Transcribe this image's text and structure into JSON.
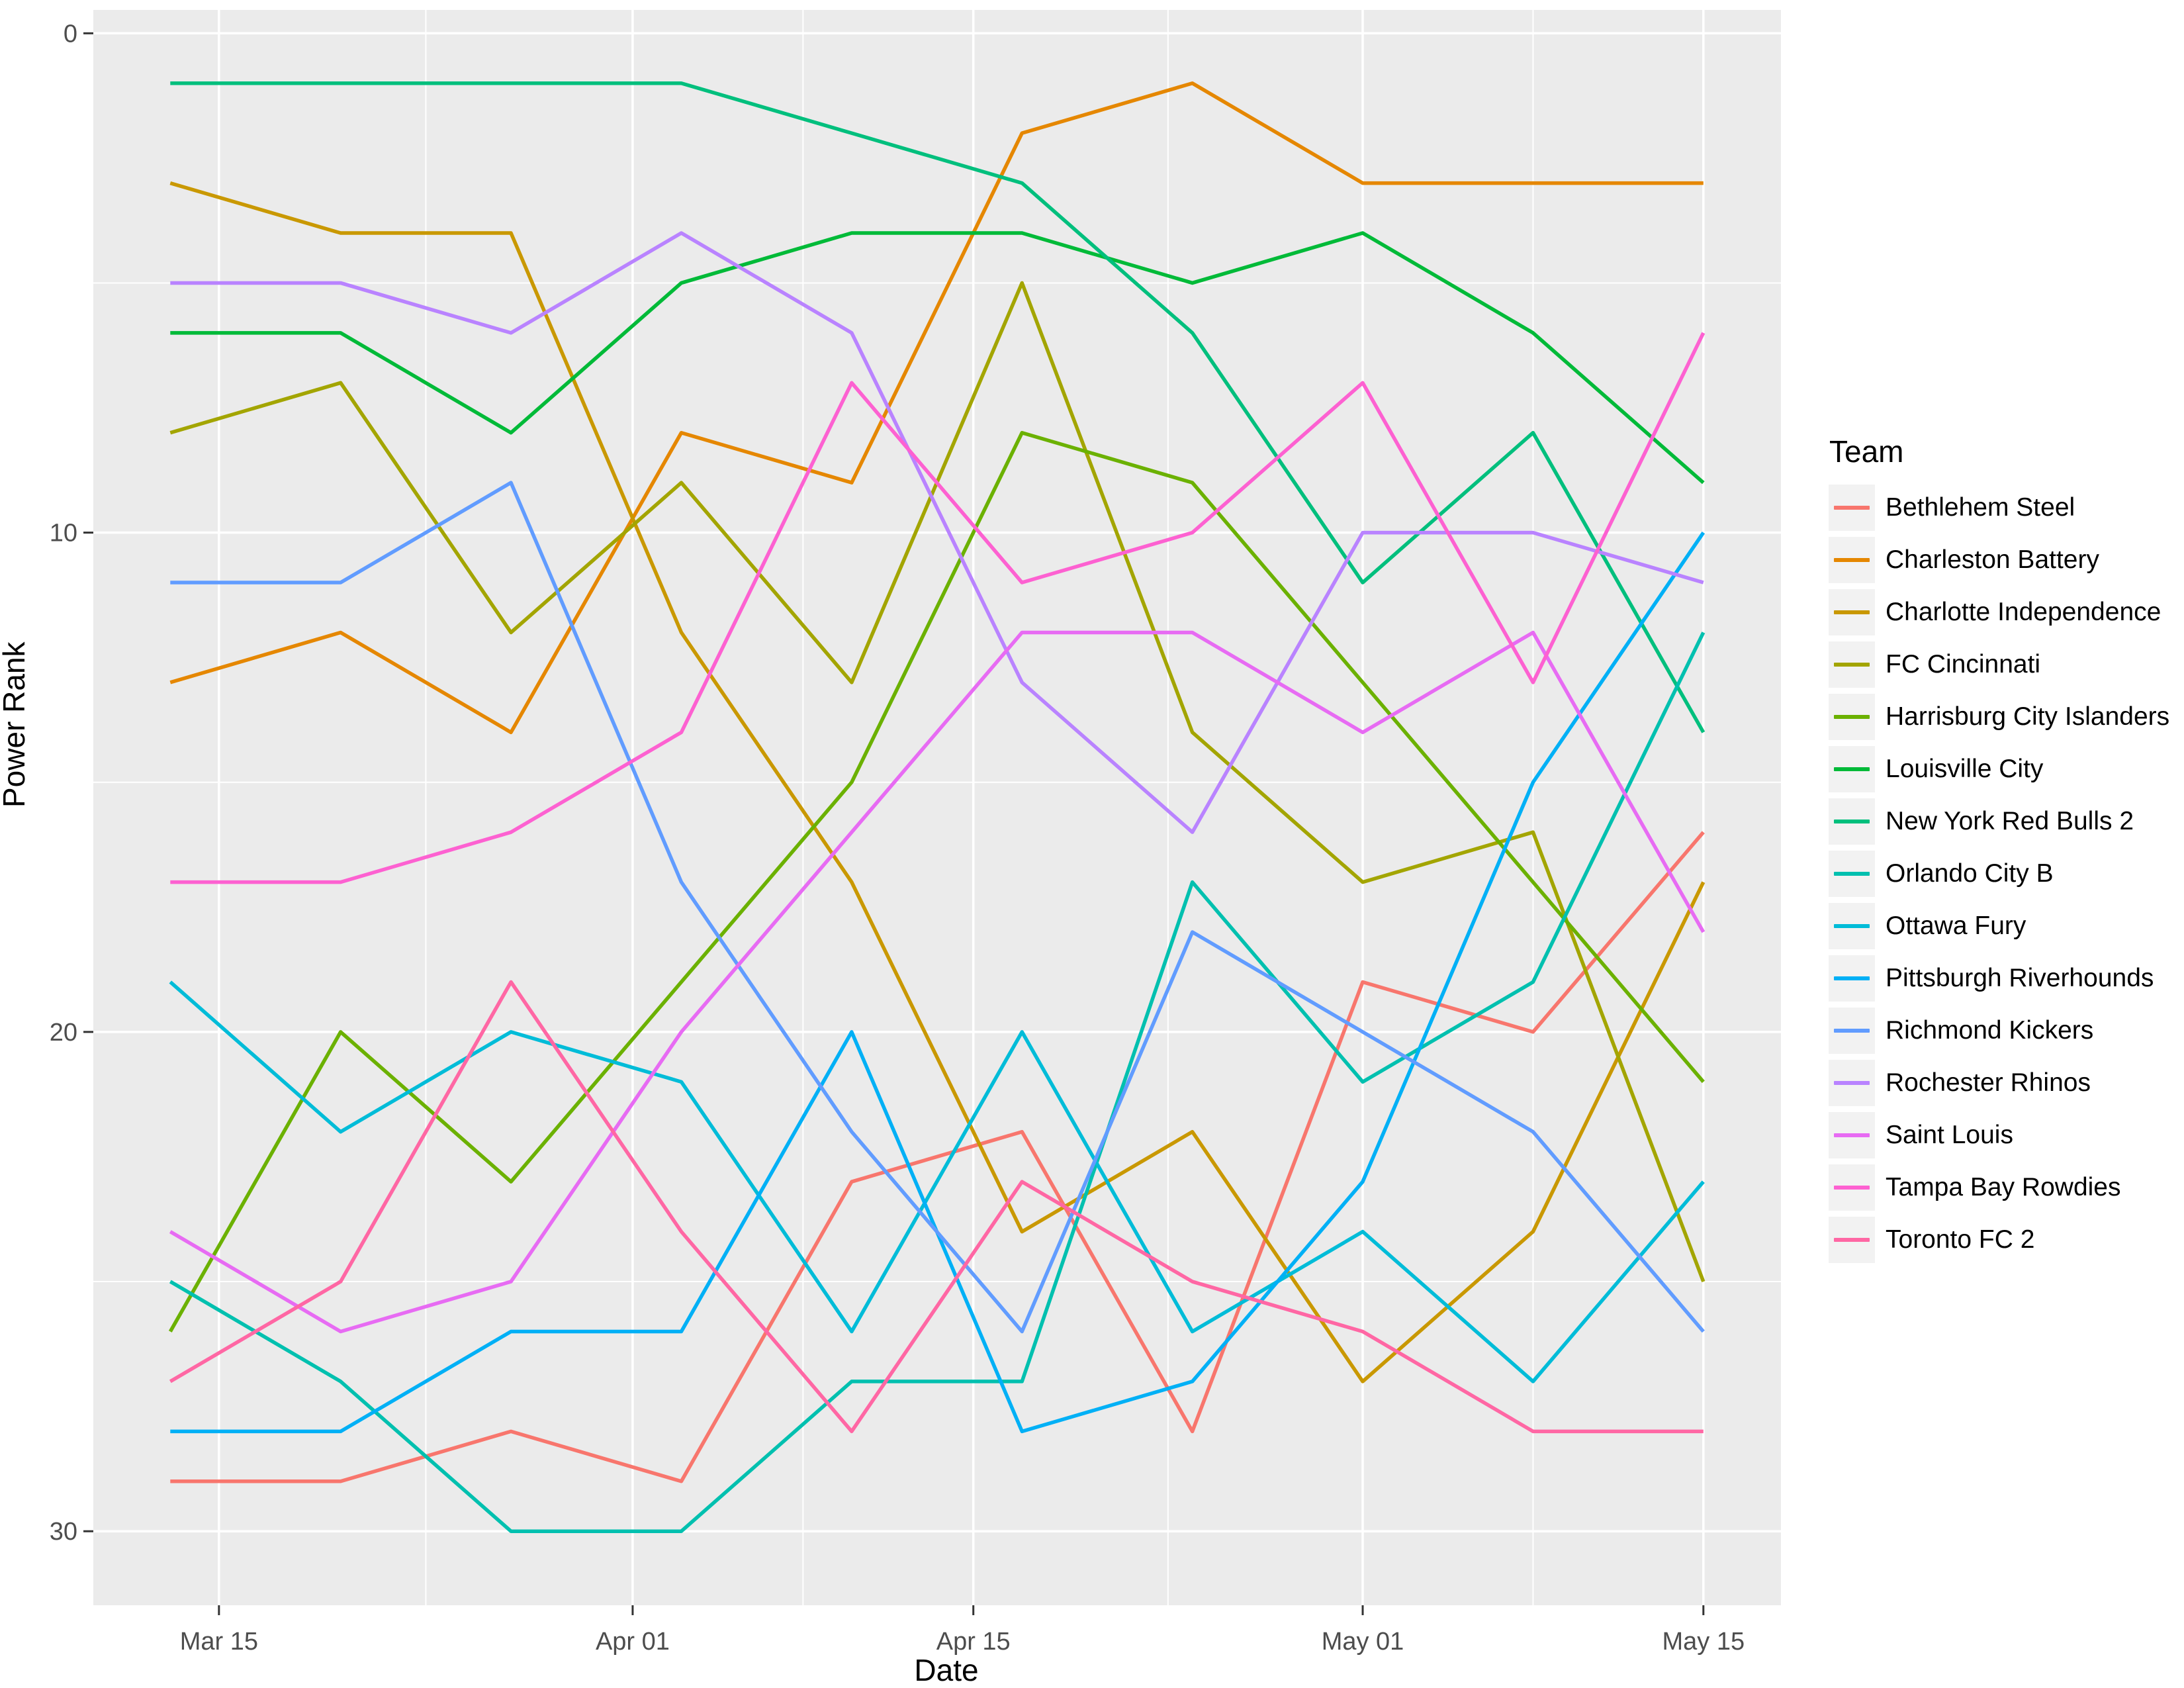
{
  "chart_data": {
    "type": "line",
    "xlabel": "Date",
    "ylabel": "Power Rank",
    "legend_title": "Team",
    "x": [
      "Mar 13",
      "Mar 20",
      "Mar 27",
      "Apr 03",
      "Apr 10",
      "Apr 17",
      "Apr 24",
      "May 01",
      "May 08",
      "May 15"
    ],
    "x_days": [
      0,
      7,
      14,
      21,
      28,
      35,
      42,
      49,
      56,
      63
    ],
    "x_major_ticks": [
      {
        "label": "Mar 15",
        "day": 2
      },
      {
        "label": "Apr 01",
        "day": 19
      },
      {
        "label": "Apr 15",
        "day": 33
      },
      {
        "label": "May 01",
        "day": 49
      },
      {
        "label": "May 15",
        "day": 63
      }
    ],
    "x_minor_days": [
      10.5,
      26,
      41,
      56
    ],
    "y_major_ticks": [
      {
        "label": "0",
        "value": 0
      },
      {
        "label": "10",
        "value": 10
      },
      {
        "label": "20",
        "value": 20
      },
      {
        "label": "30",
        "value": 30
      }
    ],
    "y_minor_values": [
      5,
      15,
      25
    ],
    "ylim": [
      0,
      30
    ],
    "y_reversed": true,
    "grid": true,
    "legend_position": "right",
    "colors": {
      "panel_bg": "#EBEBEB",
      "grid": "#FFFFFF",
      "axis_text": "#4D4D4D",
      "axis_tick": "#333333",
      "legend_key_bg": "#F2F2F2"
    },
    "series": [
      {
        "name": "Bethlehem Steel",
        "color": "#F8766D",
        "values": [
          29,
          29,
          28,
          29,
          23,
          22,
          28,
          19,
          20,
          16
        ]
      },
      {
        "name": "Charleston Battery",
        "color": "#E58700",
        "values": [
          13,
          12,
          14,
          8,
          9,
          2,
          1,
          3,
          3,
          3
        ]
      },
      {
        "name": "Charlotte Independence",
        "color": "#C99800",
        "values": [
          3,
          4,
          4,
          12,
          17,
          24,
          22,
          27,
          24,
          17
        ]
      },
      {
        "name": "FC Cincinnati",
        "color": "#A3A500",
        "values": [
          8,
          7,
          12,
          9,
          13,
          5,
          14,
          17,
          16,
          25
        ]
      },
      {
        "name": "Harrisburg City Islanders",
        "color": "#6BB100",
        "values": [
          26,
          20,
          23,
          19,
          15,
          8,
          9,
          13,
          17,
          21
        ]
      },
      {
        "name": "Louisville City",
        "color": "#00BA38",
        "values": [
          6,
          6,
          8,
          5,
          4,
          4,
          5,
          4,
          6,
          9
        ]
      },
      {
        "name": "New York Red Bulls 2",
        "color": "#00BF7D",
        "values": [
          1,
          1,
          1,
          1,
          2,
          3,
          6,
          11,
          8,
          14
        ]
      },
      {
        "name": "Orlando City B",
        "color": "#00C0AF",
        "values": [
          25,
          27,
          30,
          30,
          27,
          27,
          17,
          21,
          19,
          12
        ]
      },
      {
        "name": "Ottawa Fury",
        "color": "#00BCD8",
        "values": [
          19,
          22,
          20,
          21,
          26,
          20,
          26,
          24,
          27,
          23
        ]
      },
      {
        "name": "Pittsburgh Riverhounds",
        "color": "#00B0F6",
        "values": [
          28,
          28,
          26,
          26,
          20,
          28,
          27,
          23,
          15,
          10
        ]
      },
      {
        "name": "Richmond Kickers",
        "color": "#619CFF",
        "values": [
          11,
          11,
          9,
          17,
          22,
          26,
          18,
          20,
          22,
          26
        ]
      },
      {
        "name": "Rochester Rhinos",
        "color": "#B983FF",
        "values": [
          5,
          5,
          6,
          4,
          6,
          13,
          16,
          10,
          10,
          11
        ]
      },
      {
        "name": "Saint Louis",
        "color": "#E76BF3",
        "values": [
          24,
          26,
          25,
          20,
          16,
          12,
          12,
          14,
          12,
          18
        ]
      },
      {
        "name": "Tampa Bay Rowdies",
        "color": "#FD61D1",
        "values": [
          17,
          17,
          16,
          14,
          7,
          11,
          10,
          7,
          13,
          6
        ]
      },
      {
        "name": "Toronto FC 2",
        "color": "#FF67A4",
        "values": [
          27,
          25,
          19,
          24,
          28,
          23,
          25,
          26,
          28,
          28
        ]
      }
    ]
  }
}
